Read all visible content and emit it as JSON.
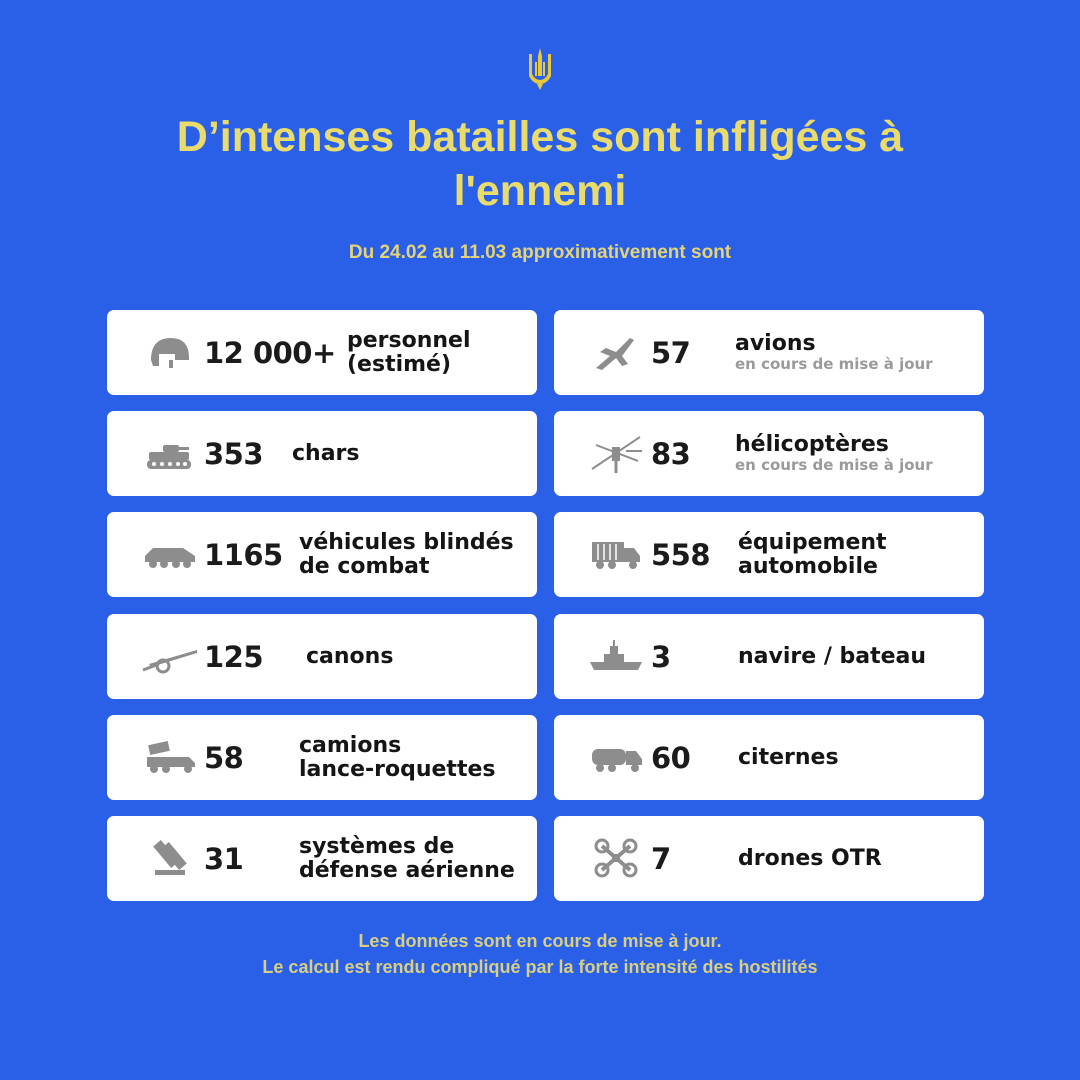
{
  "title": {
    "line1": "D’intenses batailles sont infligées à",
    "line2": "l'ennemi"
  },
  "subtitle": "Du 24.02 au 11.03 approximativement sont",
  "colors": {
    "background": "#2a5fe8",
    "title": "#e9dc6c",
    "card": "#ffffff",
    "icon": "#8d8d8d"
  },
  "stats_left": [
    {
      "icon": "helmet-icon",
      "number": "12 000+",
      "label_line1": "personnel",
      "label_line2": "(estimé)"
    },
    {
      "icon": "tank-icon",
      "number": "353",
      "label_line1": "chars",
      "label_line2": ""
    },
    {
      "icon": "armored-vehicle-icon",
      "number": "1165",
      "label_line1": "véhicules blindés",
      "label_line2": "de combat"
    },
    {
      "icon": "cannon-icon",
      "number": "125",
      "label_line1": "canons",
      "label_line2": ""
    },
    {
      "icon": "rocket-launcher-truck-icon",
      "number": "58",
      "label_line1": "camions",
      "label_line2": "lance-roquettes"
    },
    {
      "icon": "air-defense-icon",
      "number": "31",
      "label_line1": "systèmes de",
      "label_line2": "défense aérienne"
    }
  ],
  "stats_right": [
    {
      "icon": "jet-icon",
      "number": "57",
      "label_line1": "avions",
      "note": "en cours de mise à jour"
    },
    {
      "icon": "helicopter-icon",
      "number": "83",
      "label_line1": "hélicoptères",
      "note": "en cours de mise à jour"
    },
    {
      "icon": "truck-icon",
      "number": "558",
      "label_line1": "équipement",
      "label_line2": "automobile"
    },
    {
      "icon": "ship-icon",
      "number": "3",
      "label_line1": "navire / bateau"
    },
    {
      "icon": "tanker-truck-icon",
      "number": "60",
      "label_line1": "citernes"
    },
    {
      "icon": "drone-icon",
      "number": "7",
      "label_line1": "drones OTR"
    }
  ],
  "footer": {
    "line1": "Les données sont en cours de mise à jour.",
    "line2": "Le calcul est rendu compliqué par la forte intensité des hostilités"
  }
}
